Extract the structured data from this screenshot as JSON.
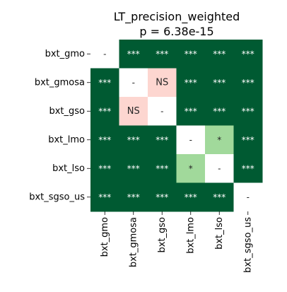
{
  "chart_data": {
    "type": "heatmap",
    "title": "LT_precision_weighted",
    "subtitle": "p = 6.38e-15",
    "row_labels": [
      "bxt_gmo",
      "bxt_gmosa",
      "bxt_gso",
      "bxt_lmo",
      "bxt_lso",
      "bxt_sgso_us"
    ],
    "col_labels": [
      "bxt_gmo",
      "bxt_gmosa",
      "bxt_gso",
      "bxt_lmo",
      "bxt_lso",
      "bxt_sgso_us"
    ],
    "cells": [
      [
        "-",
        "***",
        "***",
        "***",
        "***",
        "***"
      ],
      [
        "***",
        "-",
        "NS",
        "***",
        "***",
        "***"
      ],
      [
        "***",
        "NS",
        "-",
        "***",
        "***",
        "***"
      ],
      [
        "***",
        "***",
        "***",
        "-",
        "*",
        "***"
      ],
      [
        "***",
        "***",
        "***",
        "*",
        "-",
        "***"
      ],
      [
        "***",
        "***",
        "***",
        "***",
        "***",
        "-"
      ]
    ],
    "colors": {
      "***": "#005a32",
      "*": "#a1d99b",
      "NS": "#fdd6d0",
      "-": "#ffffff"
    },
    "text_colors": {
      "***": "#ffffff",
      "*": "#262626",
      "NS": "#262626",
      "-": "#262626"
    }
  }
}
